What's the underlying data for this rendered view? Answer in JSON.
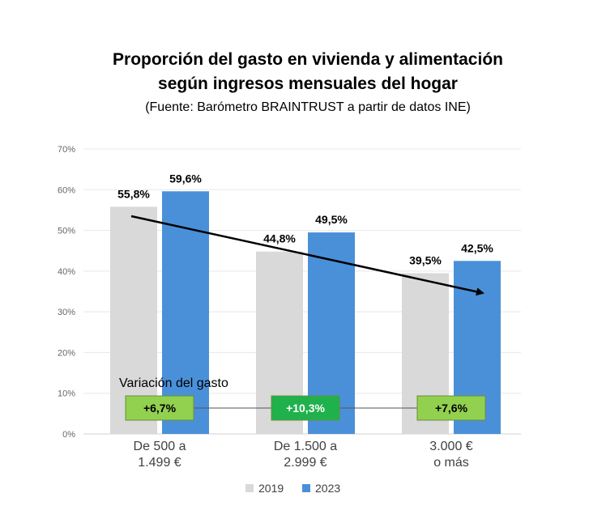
{
  "title_line1": "Proporción del gasto en vivienda y alimentación",
  "title_line2": "según ingresos mensuales del hogar",
  "source": "(Fuente: Barómetro BRAINTRUST a partir de datos INE)",
  "chart_data": {
    "type": "bar",
    "categories": [
      [
        "De 500 a",
        "1.499 €"
      ],
      [
        "De 1.500 a",
        "2.999 €"
      ],
      [
        "3.000 €",
        "o más"
      ]
    ],
    "series": [
      {
        "name": "2019",
        "values": [
          55.8,
          44.8,
          39.5
        ],
        "labels": [
          "55,8%",
          "44,8%",
          "39,5%"
        ],
        "color": "#d9d9d9"
      },
      {
        "name": "2023",
        "values": [
          59.6,
          49.5,
          42.5
        ],
        "labels": [
          "59,6%",
          "49,5%",
          "42,5%"
        ],
        "color": "#4a90d9"
      }
    ],
    "ylim": [
      0,
      70
    ],
    "yticks": [
      "0%",
      "10%",
      "20%",
      "30%",
      "40%",
      "50%",
      "60%",
      "70%"
    ],
    "grid": true,
    "legend_position": "bottom",
    "trend_arrow": true,
    "variation": {
      "title": "Variación del gasto",
      "boxes": [
        {
          "label": "+6,7%",
          "fill": "#92d050",
          "text_color": "#000000"
        },
        {
          "label": "+10,3%",
          "fill": "#1fb14b",
          "text_color": "#ffffff"
        },
        {
          "label": "+7,6%",
          "fill": "#92d050",
          "text_color": "#000000"
        }
      ]
    }
  }
}
